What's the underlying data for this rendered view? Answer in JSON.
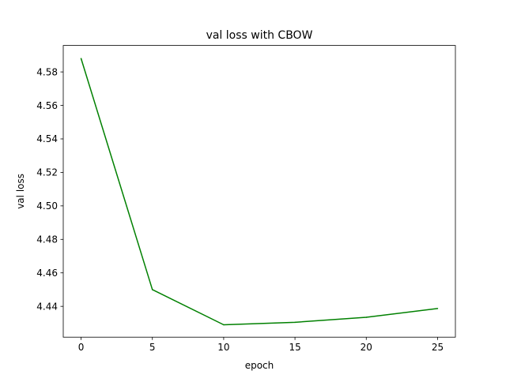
{
  "chart_data": {
    "type": "line",
    "title": "val loss with CBOW",
    "xlabel": "epoch",
    "ylabel": "val loss",
    "x_ticks": [
      0,
      5,
      10,
      15,
      20,
      25
    ],
    "y_ticks": [
      4.44,
      4.46,
      4.48,
      4.5,
      4.52,
      4.54,
      4.56,
      4.58
    ],
    "x_tick_labels": [
      "0",
      "5",
      "10",
      "15",
      "20",
      "25"
    ],
    "y_tick_labels": [
      "4.44",
      "4.46",
      "4.48",
      "4.50",
      "4.52",
      "4.54",
      "4.56",
      "4.58"
    ],
    "xlim": [
      -1.25,
      26.25
    ],
    "ylim": [
      4.4216,
      4.5958
    ],
    "grid": false,
    "legend": "none",
    "series": [
      {
        "color": "#008000",
        "x": [
          0,
          5,
          10,
          15,
          20,
          25
        ],
        "y": [
          4.588,
          4.45,
          4.429,
          4.4305,
          4.4335,
          4.4387
        ]
      }
    ]
  }
}
